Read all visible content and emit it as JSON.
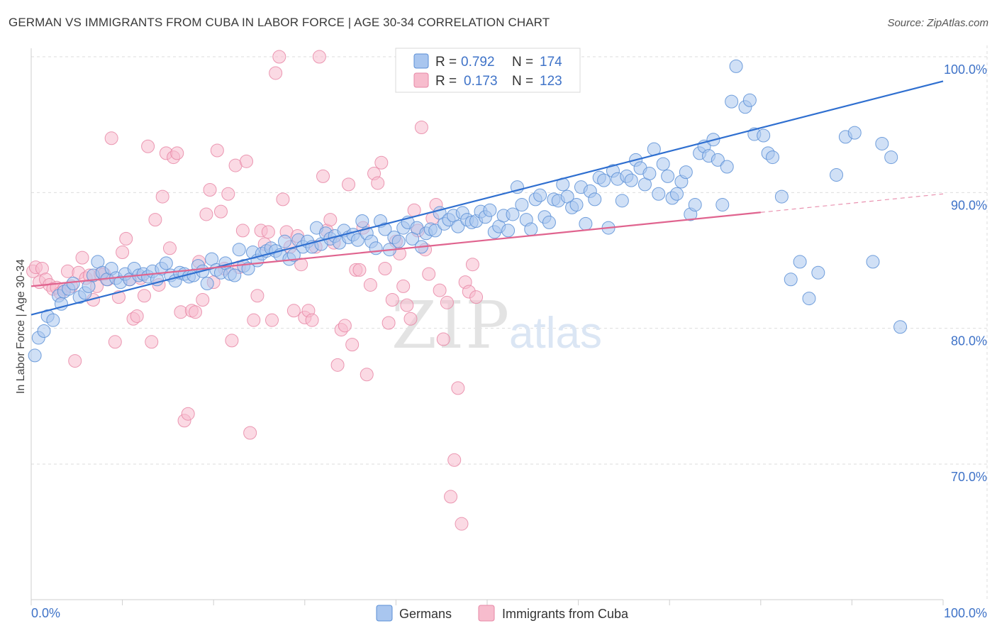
{
  "title": "GERMAN VS IMMIGRANTS FROM CUBA IN LABOR FORCE | AGE 30-34 CORRELATION CHART",
  "source": "Source: ZipAtlas.com",
  "watermark": {
    "zip": "ZIP",
    "atlas": "atlas"
  },
  "colors": {
    "blue_fill": "#a9c6ef",
    "blue_stroke": "#5b8fd6",
    "blue_line": "#2f6fd0",
    "pink_fill": "#f7bccd",
    "pink_stroke": "#e787a6",
    "pink_line": "#e0648f",
    "grid": "#dddddd",
    "tick_text": "#3f73c8"
  },
  "legend": {
    "rows": [
      {
        "r_label": "R =",
        "r_value": "0.792",
        "n_label": "N =",
        "n_value": "174"
      },
      {
        "r_label": "R =",
        "r_value": "0.173",
        "n_label": "N =",
        "n_value": "123"
      }
    ]
  },
  "chart_data": {
    "type": "scatter",
    "title": "GERMAN VS IMMIGRANTS FROM CUBA IN LABOR FORCE | AGE 30-34 CORRELATION CHART",
    "xlabel": "",
    "ylabel": "In Labor Force | Age 30-34",
    "xlim": [
      0,
      100
    ],
    "ylim": [
      60.5,
      101.5
    ],
    "x_tick_labels": [
      "0.0%",
      "100.0%"
    ],
    "y_ticks": [
      {
        "value": 100,
        "label": "100.0%"
      },
      {
        "value": 90,
        "label": "90.0%"
      },
      {
        "value": 80,
        "label": "80.0%"
      },
      {
        "value": 70,
        "label": "70.0%"
      }
    ],
    "grid": true,
    "legend_position": "bottom",
    "series": [
      {
        "name": "Germans",
        "R": 0.792,
        "N": 174,
        "trend": {
          "x": [
            0,
            100
          ],
          "y": [
            81.0,
            98.2
          ],
          "dashed_from": null
        },
        "points": [
          [
            0.4,
            78.0
          ],
          [
            0.8,
            79.3
          ],
          [
            1.4,
            79.8
          ],
          [
            1.8,
            80.9
          ],
          [
            2.4,
            80.6
          ],
          [
            3,
            82.4
          ],
          [
            3.3,
            81.8
          ],
          [
            3.6,
            82.7
          ],
          [
            4.1,
            82.9
          ],
          [
            4.6,
            83.3
          ],
          [
            5.3,
            82.3
          ],
          [
            5.9,
            82.6
          ],
          [
            6.3,
            83.1
          ],
          [
            6.8,
            83.9
          ],
          [
            7.3,
            84.9
          ],
          [
            7.8,
            84.1
          ],
          [
            8.3,
            83.6
          ],
          [
            8.8,
            84.4
          ],
          [
            9.3,
            83.7
          ],
          [
            9.8,
            83.4
          ],
          [
            10.3,
            84.0
          ],
          [
            10.8,
            83.6
          ],
          [
            11.3,
            84.4
          ],
          [
            11.8,
            83.9
          ],
          [
            12.3,
            84.0
          ],
          [
            12.8,
            83.8
          ],
          [
            13.3,
            84.2
          ],
          [
            13.8,
            83.6
          ],
          [
            14.3,
            84.4
          ],
          [
            14.8,
            84.8
          ],
          [
            15.3,
            83.9
          ],
          [
            15.8,
            83.5
          ],
          [
            16.3,
            84.1
          ],
          [
            16.8,
            84.0
          ],
          [
            17.3,
            83.8
          ],
          [
            17.8,
            83.9
          ],
          [
            18.3,
            84.6
          ],
          [
            18.8,
            84.2
          ],
          [
            19.3,
            83.3
          ],
          [
            19.8,
            85.1
          ],
          [
            20.3,
            84.3
          ],
          [
            20.8,
            84.1
          ],
          [
            21.3,
            84.8
          ],
          [
            21.8,
            84.0
          ],
          [
            22.3,
            83.9
          ],
          [
            22.8,
            85.8
          ],
          [
            23.3,
            84.6
          ],
          [
            23.8,
            84.4
          ],
          [
            24.3,
            85.6
          ],
          [
            24.8,
            85.0
          ],
          [
            25.3,
            85.5
          ],
          [
            25.8,
            85.7
          ],
          [
            26.3,
            85.9
          ],
          [
            26.8,
            85.7
          ],
          [
            27.3,
            85.4
          ],
          [
            27.8,
            86.4
          ],
          [
            28.3,
            85.1
          ],
          [
            28.8,
            85.4
          ],
          [
            29.3,
            86.5
          ],
          [
            29.8,
            86.0
          ],
          [
            30.3,
            86.4
          ],
          [
            30.8,
            86.0
          ],
          [
            31.3,
            87.4
          ],
          [
            31.8,
            86.2
          ],
          [
            32.3,
            87.0
          ],
          [
            32.8,
            86.6
          ],
          [
            33.3,
            86.8
          ],
          [
            33.8,
            86.3
          ],
          [
            34.3,
            87.2
          ],
          [
            34.8,
            86.7
          ],
          [
            35.3,
            86.9
          ],
          [
            35.8,
            86.5
          ],
          [
            36.3,
            87.9
          ],
          [
            36.8,
            87.0
          ],
          [
            37.3,
            86.4
          ],
          [
            37.8,
            85.9
          ],
          [
            38.3,
            87.9
          ],
          [
            38.8,
            87.3
          ],
          [
            39.3,
            85.8
          ],
          [
            39.8,
            86.7
          ],
          [
            40.3,
            86.4
          ],
          [
            40.8,
            87.4
          ],
          [
            41.3,
            87.8
          ],
          [
            41.8,
            86.6
          ],
          [
            42.3,
            87.4
          ],
          [
            42.8,
            86.0
          ],
          [
            43.3,
            87.0
          ],
          [
            43.8,
            87.3
          ],
          [
            44.3,
            87.2
          ],
          [
            44.8,
            88.5
          ],
          [
            45.3,
            87.7
          ],
          [
            45.8,
            88.0
          ],
          [
            46.3,
            88.3
          ],
          [
            46.8,
            87.5
          ],
          [
            47.3,
            88.5
          ],
          [
            47.8,
            88.0
          ],
          [
            48.3,
            87.8
          ],
          [
            48.8,
            87.9
          ],
          [
            49.3,
            88.6
          ],
          [
            49.8,
            88.2
          ],
          [
            50.3,
            88.7
          ],
          [
            50.8,
            87.1
          ],
          [
            51.3,
            87.5
          ],
          [
            51.8,
            88.3
          ],
          [
            52.3,
            87.2
          ],
          [
            52.8,
            88.4
          ],
          [
            53.3,
            90.4
          ],
          [
            53.8,
            89.1
          ],
          [
            54.3,
            88.0
          ],
          [
            54.8,
            87.3
          ],
          [
            55.3,
            89.5
          ],
          [
            55.8,
            89.8
          ],
          [
            56.3,
            88.2
          ],
          [
            56.8,
            87.8
          ],
          [
            57.3,
            89.5
          ],
          [
            57.8,
            89.4
          ],
          [
            58.3,
            90.6
          ],
          [
            58.8,
            89.7
          ],
          [
            59.3,
            88.9
          ],
          [
            59.8,
            89.1
          ],
          [
            60.3,
            90.4
          ],
          [
            60.8,
            87.7
          ],
          [
            61.3,
            90.1
          ],
          [
            61.8,
            89.5
          ],
          [
            62.3,
            91.1
          ],
          [
            62.8,
            90.9
          ],
          [
            63.3,
            87.4
          ],
          [
            63.8,
            91.6
          ],
          [
            64.3,
            91.0
          ],
          [
            64.8,
            89.4
          ],
          [
            65.3,
            91.2
          ],
          [
            65.8,
            90.9
          ],
          [
            66.3,
            92.4
          ],
          [
            66.8,
            91.8
          ],
          [
            67.3,
            90.6
          ],
          [
            67.8,
            91.4
          ],
          [
            68.3,
            93.2
          ],
          [
            68.8,
            89.9
          ],
          [
            69.3,
            92.1
          ],
          [
            69.8,
            91.2
          ],
          [
            70.3,
            89.6
          ],
          [
            70.8,
            89.9
          ],
          [
            71.3,
            90.8
          ],
          [
            71.8,
            91.5
          ],
          [
            72.3,
            88.4
          ],
          [
            72.8,
            89.1
          ],
          [
            73.3,
            92.9
          ],
          [
            73.8,
            93.4
          ],
          [
            74.3,
            92.7
          ],
          [
            74.8,
            93.9
          ],
          [
            75.3,
            92.4
          ],
          [
            75.8,
            89.1
          ],
          [
            76.3,
            91.9
          ],
          [
            76.8,
            96.7
          ],
          [
            77.3,
            99.3
          ],
          [
            78.3,
            96.3
          ],
          [
            78.8,
            96.8
          ],
          [
            79.3,
            94.3
          ],
          [
            80.3,
            94.2
          ],
          [
            80.8,
            92.9
          ],
          [
            81.3,
            92.6
          ],
          [
            82.3,
            89.7
          ],
          [
            83.3,
            83.6
          ],
          [
            84.3,
            84.9
          ],
          [
            85.3,
            82.2
          ],
          [
            86.3,
            84.1
          ],
          [
            88.3,
            91.3
          ],
          [
            89.3,
            94.1
          ],
          [
            90.3,
            94.4
          ],
          [
            92.3,
            84.9
          ],
          [
            93.3,
            93.6
          ],
          [
            94.3,
            92.6
          ],
          [
            95.3,
            80.1
          ]
        ]
      },
      {
        "name": "Immigrants from Cuba",
        "R": 0.173,
        "N": 123,
        "trend": {
          "x": [
            0,
            100
          ],
          "y": [
            83.1,
            89.9
          ],
          "dashed_from": 80
        },
        "points": [
          [
            0.2,
            84.2
          ],
          [
            0.5,
            84.5
          ],
          [
            0.9,
            83.4
          ],
          [
            1.2,
            84.4
          ],
          [
            1.6,
            83.6
          ],
          [
            2,
            83.2
          ],
          [
            2.4,
            82.9
          ],
          [
            2.8,
            83.0
          ],
          [
            3.2,
            82.6
          ],
          [
            3.6,
            82.9
          ],
          [
            4.0,
            84.2
          ],
          [
            4.4,
            83.1
          ],
          [
            4.8,
            77.6
          ],
          [
            5.2,
            84.1
          ],
          [
            5.6,
            85.2
          ],
          [
            6.0,
            83.7
          ],
          [
            6.4,
            83.9
          ],
          [
            6.8,
            82.1
          ],
          [
            7.2,
            83.1
          ],
          [
            7.6,
            84.0
          ],
          [
            8.0,
            84.0
          ],
          [
            8.4,
            83.6
          ],
          [
            8.8,
            94.0
          ],
          [
            9.2,
            79.0
          ],
          [
            9.6,
            82.3
          ],
          [
            10.0,
            85.6
          ],
          [
            10.4,
            86.6
          ],
          [
            10.8,
            83.6
          ],
          [
            11.2,
            80.7
          ],
          [
            11.6,
            80.9
          ],
          [
            12.0,
            83.7
          ],
          [
            12.4,
            82.4
          ],
          [
            12.8,
            93.4
          ],
          [
            13.2,
            79.0
          ],
          [
            13.6,
            88.0
          ],
          [
            14.0,
            83.2
          ],
          [
            14.4,
            89.7
          ],
          [
            14.8,
            92.9
          ],
          [
            15.2,
            85.9
          ],
          [
            15.6,
            92.6
          ],
          [
            16.0,
            92.9
          ],
          [
            16.4,
            81.2
          ],
          [
            16.8,
            73.2
          ],
          [
            17.2,
            73.7
          ],
          [
            17.6,
            81.3
          ],
          [
            18.0,
            81.2
          ],
          [
            18.4,
            84.9
          ],
          [
            18.8,
            82.1
          ],
          [
            19.2,
            88.4
          ],
          [
            19.6,
            90.2
          ],
          [
            20.0,
            83.4
          ],
          [
            20.4,
            93.1
          ],
          [
            20.8,
            88.6
          ],
          [
            21.2,
            84.4
          ],
          [
            21.6,
            89.9
          ],
          [
            22.0,
            79.1
          ],
          [
            22.4,
            92.0
          ],
          [
            22.8,
            84.5
          ],
          [
            23.2,
            87.2
          ],
          [
            23.6,
            92.3
          ],
          [
            24.0,
            72.3
          ],
          [
            24.4,
            80.6
          ],
          [
            24.8,
            82.4
          ],
          [
            25.2,
            87.2
          ],
          [
            25.6,
            86.2
          ],
          [
            26.0,
            87.1
          ],
          [
            26.4,
            80.6
          ],
          [
            26.8,
            98.8
          ],
          [
            27.2,
            100.0
          ],
          [
            27.6,
            89.5
          ],
          [
            28.0,
            87.1
          ],
          [
            28.4,
            86.0
          ],
          [
            28.8,
            81.3
          ],
          [
            29.2,
            86.8
          ],
          [
            29.6,
            84.7
          ],
          [
            30.0,
            80.8
          ],
          [
            30.4,
            81.3
          ],
          [
            30.8,
            80.6
          ],
          [
            31.2,
            86.0
          ],
          [
            31.6,
            100.0
          ],
          [
            32.0,
            91.2
          ],
          [
            32.4,
            87.2
          ],
          [
            32.8,
            88.0
          ],
          [
            33.2,
            86.3
          ],
          [
            33.6,
            77.3
          ],
          [
            34.0,
            79.9
          ],
          [
            34.4,
            80.2
          ],
          [
            34.8,
            90.6
          ],
          [
            35.2,
            78.8
          ],
          [
            35.6,
            84.3
          ],
          [
            36.0,
            84.3
          ],
          [
            36.4,
            87.4
          ],
          [
            36.8,
            76.6
          ],
          [
            37.2,
            83.2
          ],
          [
            37.6,
            91.4
          ],
          [
            38.0,
            90.7
          ],
          [
            38.4,
            92.2
          ],
          [
            38.8,
            84.4
          ],
          [
            39.2,
            80.4
          ],
          [
            39.6,
            82.1
          ],
          [
            40.0,
            86.4
          ],
          [
            40.4,
            85.5
          ],
          [
            40.8,
            83.1
          ],
          [
            41.2,
            81.7
          ],
          [
            41.6,
            80.7
          ],
          [
            42.0,
            88.7
          ],
          [
            42.4,
            87.2
          ],
          [
            42.8,
            94.8
          ],
          [
            43.2,
            85.8
          ],
          [
            43.6,
            84.0
          ],
          [
            44.0,
            88.1
          ],
          [
            44.4,
            89.1
          ],
          [
            44.8,
            82.8
          ],
          [
            45.2,
            79.2
          ],
          [
            45.6,
            81.9
          ],
          [
            46.0,
            67.6
          ],
          [
            46.4,
            70.3
          ],
          [
            46.8,
            75.6
          ],
          [
            47.2,
            65.6
          ],
          [
            47.6,
            83.4
          ],
          [
            48.0,
            82.7
          ],
          [
            48.4,
            84.7
          ],
          [
            48.8,
            82.3
          ]
        ]
      }
    ]
  },
  "bottom_legend": [
    {
      "label": "Germans"
    },
    {
      "label": "Immigrants from Cuba"
    }
  ]
}
